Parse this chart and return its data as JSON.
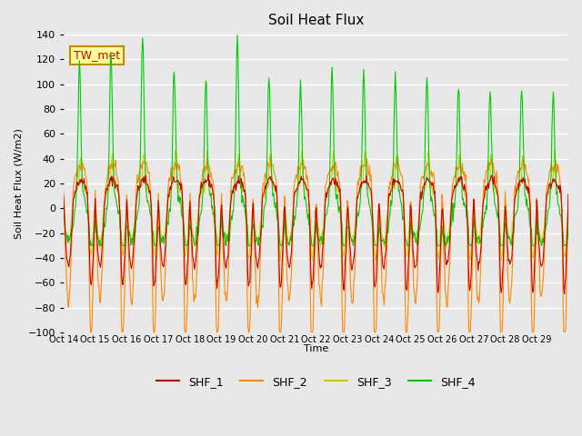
{
  "title": "Soil Heat Flux",
  "ylabel": "Soil Heat Flux (W/m2)",
  "xlabel": "Time",
  "ylim": [
    -100,
    140
  ],
  "yticks": [
    -100,
    -80,
    -60,
    -40,
    -20,
    0,
    20,
    40,
    60,
    80,
    100,
    120,
    140
  ],
  "xtick_positions": [
    0,
    1,
    2,
    3,
    4,
    5,
    6,
    7,
    8,
    9,
    10,
    11,
    12,
    13,
    14,
    15
  ],
  "xtick_labels": [
    "Oct 14",
    "Oct 15",
    "Oct 16",
    "Oct 17",
    "Oct 18",
    "Oct 19",
    "Oct 20",
    "Oct 21",
    "Oct 22",
    "Oct 23",
    "Oct 24",
    "Oct 25",
    "Oct 26",
    "Oct 27",
    "Oct 28",
    "Oct 29"
  ],
  "colors": {
    "SHF_1": "#cc0000",
    "SHF_2": "#ff8800",
    "SHF_3": "#cccc00",
    "SHF_4": "#00cc00"
  },
  "legend_entries": [
    "SHF_1",
    "SHF_2",
    "SHF_3",
    "SHF_4"
  ],
  "annotation_text": "TW_met",
  "annotation_color": "#cc0000",
  "annotation_bg": "#ffff99",
  "annotation_border": "#cc8800",
  "bg_color": "#e8e8e8",
  "plot_bg_color": "#e8e8e8",
  "grid_color": "white",
  "n_days": 16,
  "pts_per_day": 48
}
